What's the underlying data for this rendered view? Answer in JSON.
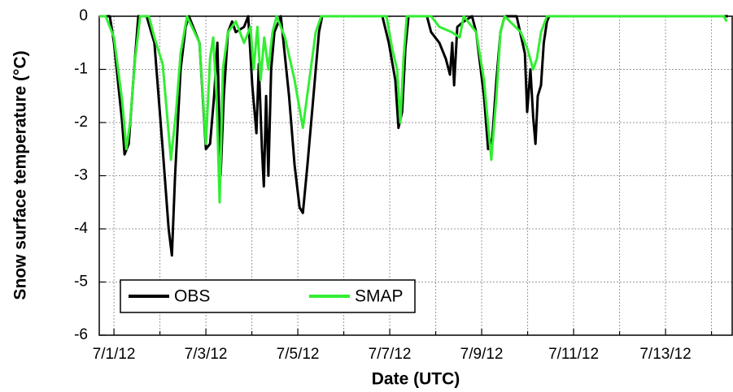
{
  "chart_data": {
    "type": "line",
    "x_label": "Date (UTC)",
    "y_label": "Snow surface temperature (°C)",
    "xlim": [
      0.68,
      14.45
    ],
    "xticks": [
      {
        "value": 1,
        "label": "7/1/12"
      },
      {
        "value": 3,
        "label": "7/3/12"
      },
      {
        "value": 5,
        "label": "7/5/12"
      },
      {
        "value": 7,
        "label": "7/7/12"
      },
      {
        "value": 9,
        "label": "7/9/12"
      },
      {
        "value": 11,
        "label": "7/11/12"
      },
      {
        "value": 13,
        "label": "7/13/12"
      }
    ],
    "x_minor_ticks": [
      2,
      4,
      6,
      8,
      10,
      12,
      14
    ],
    "ylim": [
      -6,
      0
    ],
    "yticks": [
      0,
      -1,
      -2,
      -3,
      -4,
      -5,
      -6
    ],
    "grid": true,
    "legend": "lower left",
    "series": [
      {
        "name": "OBS",
        "color": "#000000",
        "x": [
          0.68,
          0.91,
          1.0,
          1.18,
          1.23,
          1.32,
          1.44,
          1.53,
          1.71,
          1.88,
          2.06,
          2.19,
          2.26,
          2.33,
          2.45,
          2.56,
          2.63,
          2.86,
          3.0,
          3.09,
          3.18,
          3.25,
          3.32,
          3.39,
          3.48,
          3.57,
          3.65,
          3.83,
          3.92,
          4.01,
          4.1,
          4.15,
          4.22,
          4.26,
          4.31,
          4.36,
          4.42,
          4.49,
          4.63,
          4.81,
          4.93,
          5.04,
          5.11,
          5.21,
          5.34,
          5.46,
          5.53,
          6.84,
          6.98,
          7.12,
          7.19,
          7.27,
          7.34,
          7.41,
          7.81,
          7.9,
          8.08,
          8.22,
          8.31,
          8.36,
          8.4,
          8.47,
          8.61,
          8.79,
          8.88,
          9.05,
          9.14,
          9.23,
          9.32,
          9.41,
          9.5,
          9.76,
          9.94,
          9.99,
          10.06,
          10.12,
          10.17,
          10.22,
          10.29,
          10.35,
          10.42,
          10.47,
          14.36
        ],
        "values": [
          0,
          0,
          -0.5,
          -2.0,
          -2.6,
          -2.4,
          -1.0,
          0,
          0,
          -0.5,
          -2.5,
          -4.0,
          -4.5,
          -3.0,
          -1.0,
          -0.2,
          0,
          -0.5,
          -2.5,
          -2.4,
          -1.5,
          -0.5,
          -3.0,
          -1.5,
          -0.3,
          -0.1,
          -0.3,
          -0.2,
          0,
          -1.3,
          -2.2,
          -0.9,
          -2.5,
          -3.2,
          -1.5,
          -3.0,
          -1.0,
          -0.3,
          0,
          -1.5,
          -2.8,
          -3.6,
          -3.7,
          -2.8,
          -1.5,
          -0.3,
          0,
          0,
          -0.5,
          -1.2,
          -2.1,
          -1.8,
          -0.6,
          0,
          0,
          -0.3,
          -0.5,
          -0.8,
          -1.1,
          -0.5,
          -1.3,
          -0.2,
          -0.1,
          0,
          -0.3,
          -1.5,
          -2.5,
          -2.3,
          -1.2,
          -0.3,
          0,
          0,
          -0.7,
          -1.8,
          -1.0,
          -1.9,
          -2.4,
          -1.5,
          -1.3,
          -0.5,
          -0.1,
          0,
          0
        ]
      },
      {
        "name": "SMAP",
        "color": "#33ee33",
        "x": [
          0.68,
          0.82,
          1.0,
          1.18,
          1.27,
          1.35,
          1.46,
          1.57,
          1.76,
          1.88,
          2.06,
          2.24,
          2.35,
          2.45,
          2.59,
          2.86,
          3.0,
          3.09,
          3.16,
          3.23,
          3.3,
          3.37,
          3.48,
          3.65,
          3.83,
          3.97,
          4.04,
          4.12,
          4.19,
          4.27,
          4.36,
          4.45,
          4.54,
          4.72,
          4.93,
          5.11,
          5.25,
          5.39,
          5.51,
          6.93,
          7.05,
          7.16,
          7.23,
          7.3,
          7.37,
          7.9,
          8.08,
          8.35,
          8.52,
          8.61,
          8.88,
          9.05,
          9.21,
          9.32,
          9.41,
          9.5,
          9.85,
          9.99,
          10.12,
          10.2,
          10.29,
          10.42,
          14.27,
          14.33
        ],
        "values": [
          0,
          0,
          -0.4,
          -1.6,
          -2.5,
          -2.0,
          -0.8,
          0,
          0,
          -0.4,
          -0.9,
          -2.7,
          -1.8,
          -0.7,
          0,
          -0.5,
          -2.4,
          -0.8,
          -0.4,
          -1.5,
          -3.5,
          -1.0,
          -0.3,
          -0.1,
          -0.5,
          -0.2,
          -1.0,
          -0.2,
          -1.2,
          -0.4,
          -1.0,
          -0.3,
          0,
          -0.4,
          -1.2,
          -2.1,
          -1.2,
          -0.3,
          0,
          0,
          -0.6,
          -1.0,
          -2.0,
          -0.8,
          0,
          0,
          -0.2,
          -0.3,
          -0.4,
          0,
          -0.3,
          -1.2,
          -2.7,
          -1.5,
          -0.3,
          0,
          -0.3,
          -0.6,
          -1.0,
          -0.8,
          -0.3,
          0,
          0,
          -0.1
        ]
      }
    ]
  }
}
